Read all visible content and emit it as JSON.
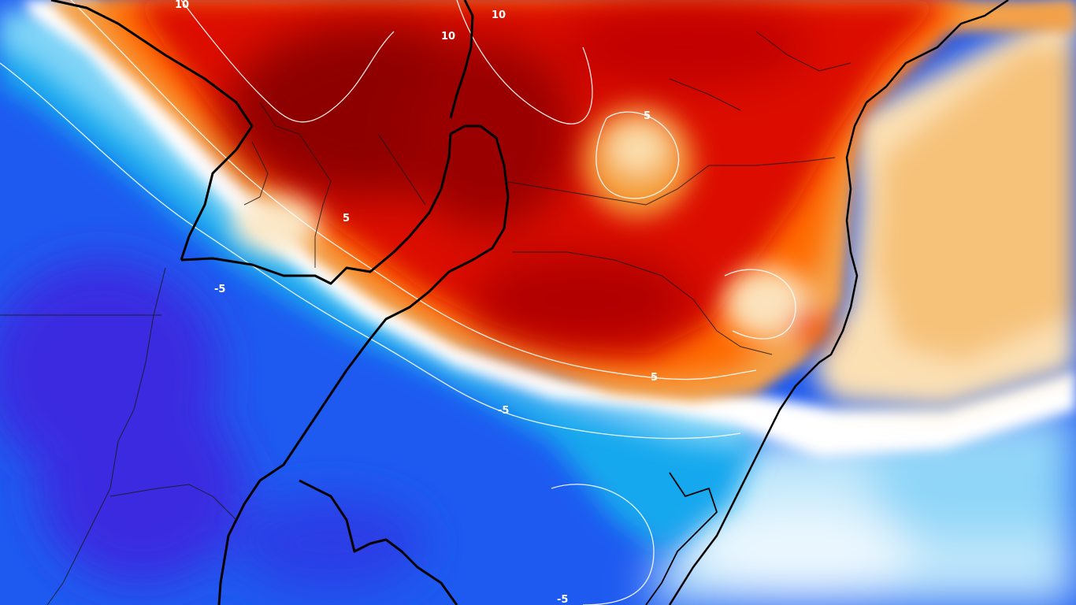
{
  "map": {
    "type": "temperature anomaly map",
    "palette": {
      "warm_deep": "#8b0000",
      "warm": "#d80000",
      "warm_orange": "#ff7a00",
      "warm_light": "#f7c070",
      "warm_pale": "#fbe3bd",
      "neutral": "#ffffff",
      "cool_pale": "#cfeefc",
      "cool_light": "#7fd2f6",
      "cool": "#18a6ee",
      "cool_deep": "#1a50ee",
      "cool_deepest": "#3b2ae0"
    },
    "contour_labels": [
      {
        "text": "10"
      },
      {
        "text": "10"
      },
      {
        "text": "10"
      },
      {
        "text": "5"
      },
      {
        "text": "5"
      },
      {
        "text": "5"
      },
      {
        "text": "-5"
      },
      {
        "text": "-5"
      },
      {
        "text": "-5"
      }
    ]
  }
}
